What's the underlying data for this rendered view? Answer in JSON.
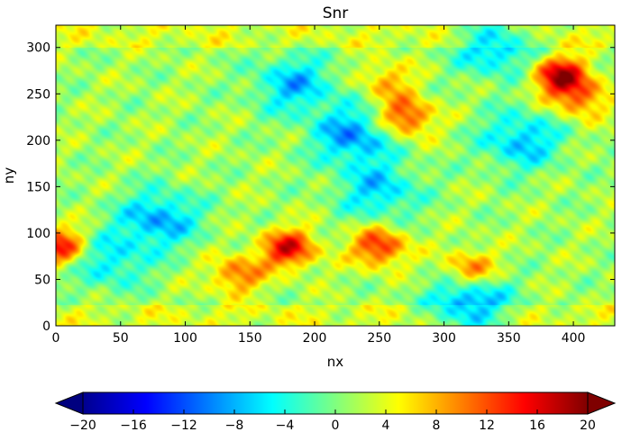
{
  "chart_data": {
    "type": "heatmap",
    "title": "Snr",
    "xlabel": "nx",
    "ylabel": "ny",
    "xlim": [
      0,
      432
    ],
    "ylim": [
      0,
      324
    ],
    "x_ticks": [
      0,
      50,
      100,
      150,
      200,
      250,
      300,
      350,
      400
    ],
    "y_ticks": [
      0,
      50,
      100,
      150,
      200,
      250,
      300
    ],
    "colormap": "jet",
    "colorbar": {
      "orientation": "horizontal",
      "placement": "bottom",
      "range": [
        -20,
        20
      ],
      "extend": "both",
      "ticks": [
        -20,
        -16,
        -12,
        -8,
        -4,
        0,
        4,
        8,
        12,
        16,
        20
      ]
    },
    "field_features": [
      {
        "label": "high",
        "x": 390,
        "y": 270,
        "value": 20
      },
      {
        "label": "high",
        "x": 250,
        "y": 85,
        "value": 16
      },
      {
        "label": "high",
        "x": 320,
        "y": 60,
        "value": 13
      },
      {
        "label": "high",
        "x": 140,
        "y": 55,
        "value": 12
      },
      {
        "label": "high",
        "x": 4,
        "y": 85,
        "value": 17
      },
      {
        "label": "high",
        "x": 270,
        "y": 225,
        "value": 16
      },
      {
        "label": "high",
        "x": 180,
        "y": 83,
        "value": 18
      },
      {
        "label": "high",
        "x": 405,
        "y": 245,
        "value": 12
      },
      {
        "label": "high",
        "x": 255,
        "y": 265,
        "value": 9
      },
      {
        "label": "low",
        "x": 80,
        "y": 115,
        "value": -10
      },
      {
        "label": "low",
        "x": 230,
        "y": 205,
        "value": -11
      },
      {
        "label": "low",
        "x": 185,
        "y": 260,
        "value": -9
      },
      {
        "label": "low",
        "x": 360,
        "y": 200,
        "value": -9
      },
      {
        "label": "low",
        "x": 320,
        "y": 25,
        "value": -12
      },
      {
        "label": "low",
        "x": 250,
        "y": 145,
        "value": -8
      },
      {
        "label": "low",
        "x": 40,
        "y": 70,
        "value": -7
      },
      {
        "label": "low",
        "x": 340,
        "y": 300,
        "value": -9
      }
    ]
  }
}
